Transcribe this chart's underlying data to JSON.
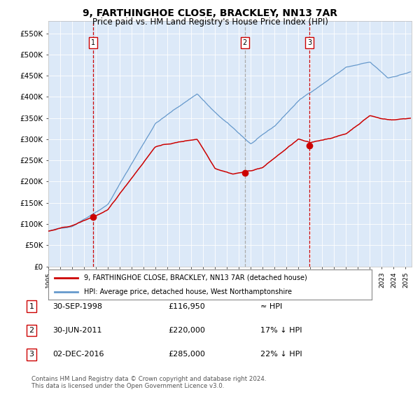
{
  "title": "9, FARTHINGHOE CLOSE, BRACKLEY, NN13 7AR",
  "subtitle": "Price paid vs. HM Land Registry's House Price Index (HPI)",
  "legend_line1": "9, FARTHINGHOE CLOSE, BRACKLEY, NN13 7AR (detached house)",
  "legend_line2": "HPI: Average price, detached house, West Northamptonshire",
  "table": [
    {
      "num": "1",
      "date": "30-SEP-1998",
      "price": "£116,950",
      "vs": "≈ HPI"
    },
    {
      "num": "2",
      "date": "30-JUN-2011",
      "price": "£220,000",
      "vs": "17% ↓ HPI"
    },
    {
      "num": "3",
      "date": "02-DEC-2016",
      "price": "£285,000",
      "vs": "22% ↓ HPI"
    }
  ],
  "footer": "Contains HM Land Registry data © Crown copyright and database right 2024.\nThis data is licensed under the Open Government Licence v3.0.",
  "background_color": "#dce9f8",
  "red_line_color": "#cc0000",
  "blue_line_color": "#6699cc",
  "ylim": [
    0,
    580000
  ],
  "yticks": [
    0,
    50000,
    100000,
    150000,
    200000,
    250000,
    300000,
    350000,
    400000,
    450000,
    500000,
    550000
  ],
  "sale1_x": 1998.75,
  "sale1_y": 116950,
  "sale2_x": 2011.5,
  "sale2_y": 220000,
  "sale3_x": 2016.917,
  "sale3_y": 285000,
  "vline1_color": "#cc0000",
  "vline2_color": "#aaaaaa",
  "vline3_color": "#cc0000",
  "xlim_start": 1995.0,
  "xlim_end": 2025.5
}
